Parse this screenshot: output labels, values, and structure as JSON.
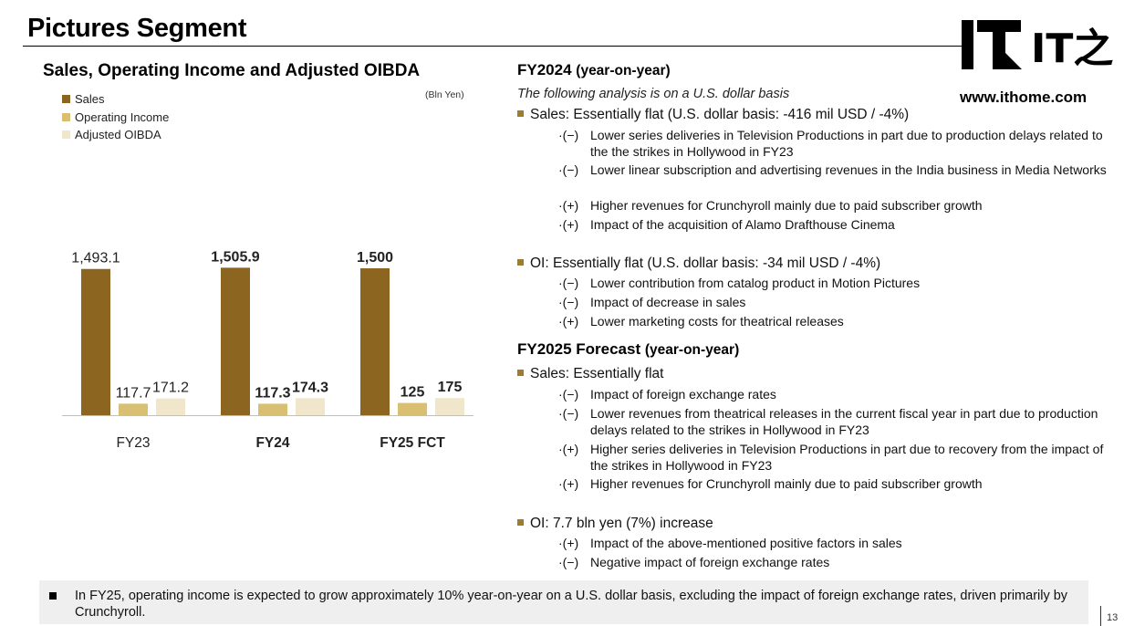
{
  "page": {
    "title": "Pictures Segment",
    "number": "13"
  },
  "logo": {
    "mark": "IT之家",
    "url": "www.ithome.com"
  },
  "colors": {
    "sales": "#8c6620",
    "operating_income": "#d8bf72",
    "adjusted_oibda": "#efe6cc",
    "bullet_square": "#a07c2a"
  },
  "chart_data": {
    "type": "bar",
    "title": "Sales, Operating Income and Adjusted OIBDA",
    "unit": "(Bln Yen)",
    "categories": [
      "FY23",
      "FY24",
      "FY25 FCT"
    ],
    "category_bold": [
      false,
      true,
      true
    ],
    "series": [
      {
        "name": "Sales",
        "values": [
          1493.1,
          1505.9,
          1500
        ],
        "labels": [
          "1,493.1",
          "1,505.9",
          "1,500"
        ]
      },
      {
        "name": "Operating Income",
        "values": [
          117.7,
          117.3,
          125
        ],
        "labels": [
          "117.7",
          "117.3",
          "125"
        ]
      },
      {
        "name": "Adjusted OIBDA",
        "values": [
          171.2,
          174.3,
          175
        ],
        "labels": [
          "171.2",
          "174.3",
          "175"
        ]
      }
    ],
    "legend_position": "top-left",
    "grid": false
  },
  "fy2024": {
    "heading": "FY2024",
    "heading_paren": "(year-on-year)",
    "note": "The following analysis is on a U.S. dollar basis",
    "sales": {
      "label": "Sales: Essentially flat (U.S. dollar basis: -416 mil USD / -4%)",
      "items": [
        {
          "mark": "·(−)",
          "text": "Lower series deliveries in Television Productions in part due to production delays related to the the strikes in Hollywood in FY23"
        },
        {
          "mark": "·(−)",
          "text": "Lower linear subscription and advertising revenues in the India business in Media Networks"
        },
        {
          "mark": "·(+)",
          "text": "Higher revenues for Crunchyroll mainly due to paid subscriber growth"
        },
        {
          "mark": "·(+)",
          "text": "Impact of the acquisition of Alamo Drafthouse Cinema"
        }
      ]
    },
    "oi": {
      "label": "OI: Essentially flat (U.S. dollar basis: -34 mil USD / -4%)",
      "items": [
        {
          "mark": "·(−)",
          "text": "Lower contribution from catalog product in Motion Pictures"
        },
        {
          "mark": "·(−)",
          "text": "Impact of decrease in sales"
        },
        {
          "mark": "·(+)",
          "text": "Lower marketing costs for theatrical releases"
        }
      ]
    }
  },
  "fy2025": {
    "heading": "FY2025 Forecast",
    "heading_paren": "(year-on-year)",
    "sales": {
      "label": "Sales: Essentially flat",
      "items": [
        {
          "mark": "·(−)",
          "text": "Impact of foreign exchange rates"
        },
        {
          "mark": "·(−)",
          "text": "Lower revenues from theatrical releases in the current fiscal year in part due to production delays related to the strikes in Hollywood in FY23"
        },
        {
          "mark": "·(+)",
          "text": "Higher series deliveries in Television Productions in part due to recovery from the impact of the strikes in Hollywood in FY23"
        },
        {
          "mark": "·(+)",
          "text": "Higher revenues for Crunchyroll mainly due to paid subscriber growth"
        }
      ]
    },
    "oi": {
      "label": "OI: 7.7 bln yen (7%) increase",
      "items": [
        {
          "mark": "·(+)",
          "text": "Impact of the above-mentioned positive factors in sales"
        },
        {
          "mark": "·(−)",
          "text": "Negative impact of foreign exchange rates"
        }
      ]
    }
  },
  "footer": {
    "text": "In FY25, operating income is expected to grow approximately 10% year-on-year on a U.S. dollar basis, excluding the impact of foreign exchange rates, driven primarily by Crunchyroll."
  }
}
